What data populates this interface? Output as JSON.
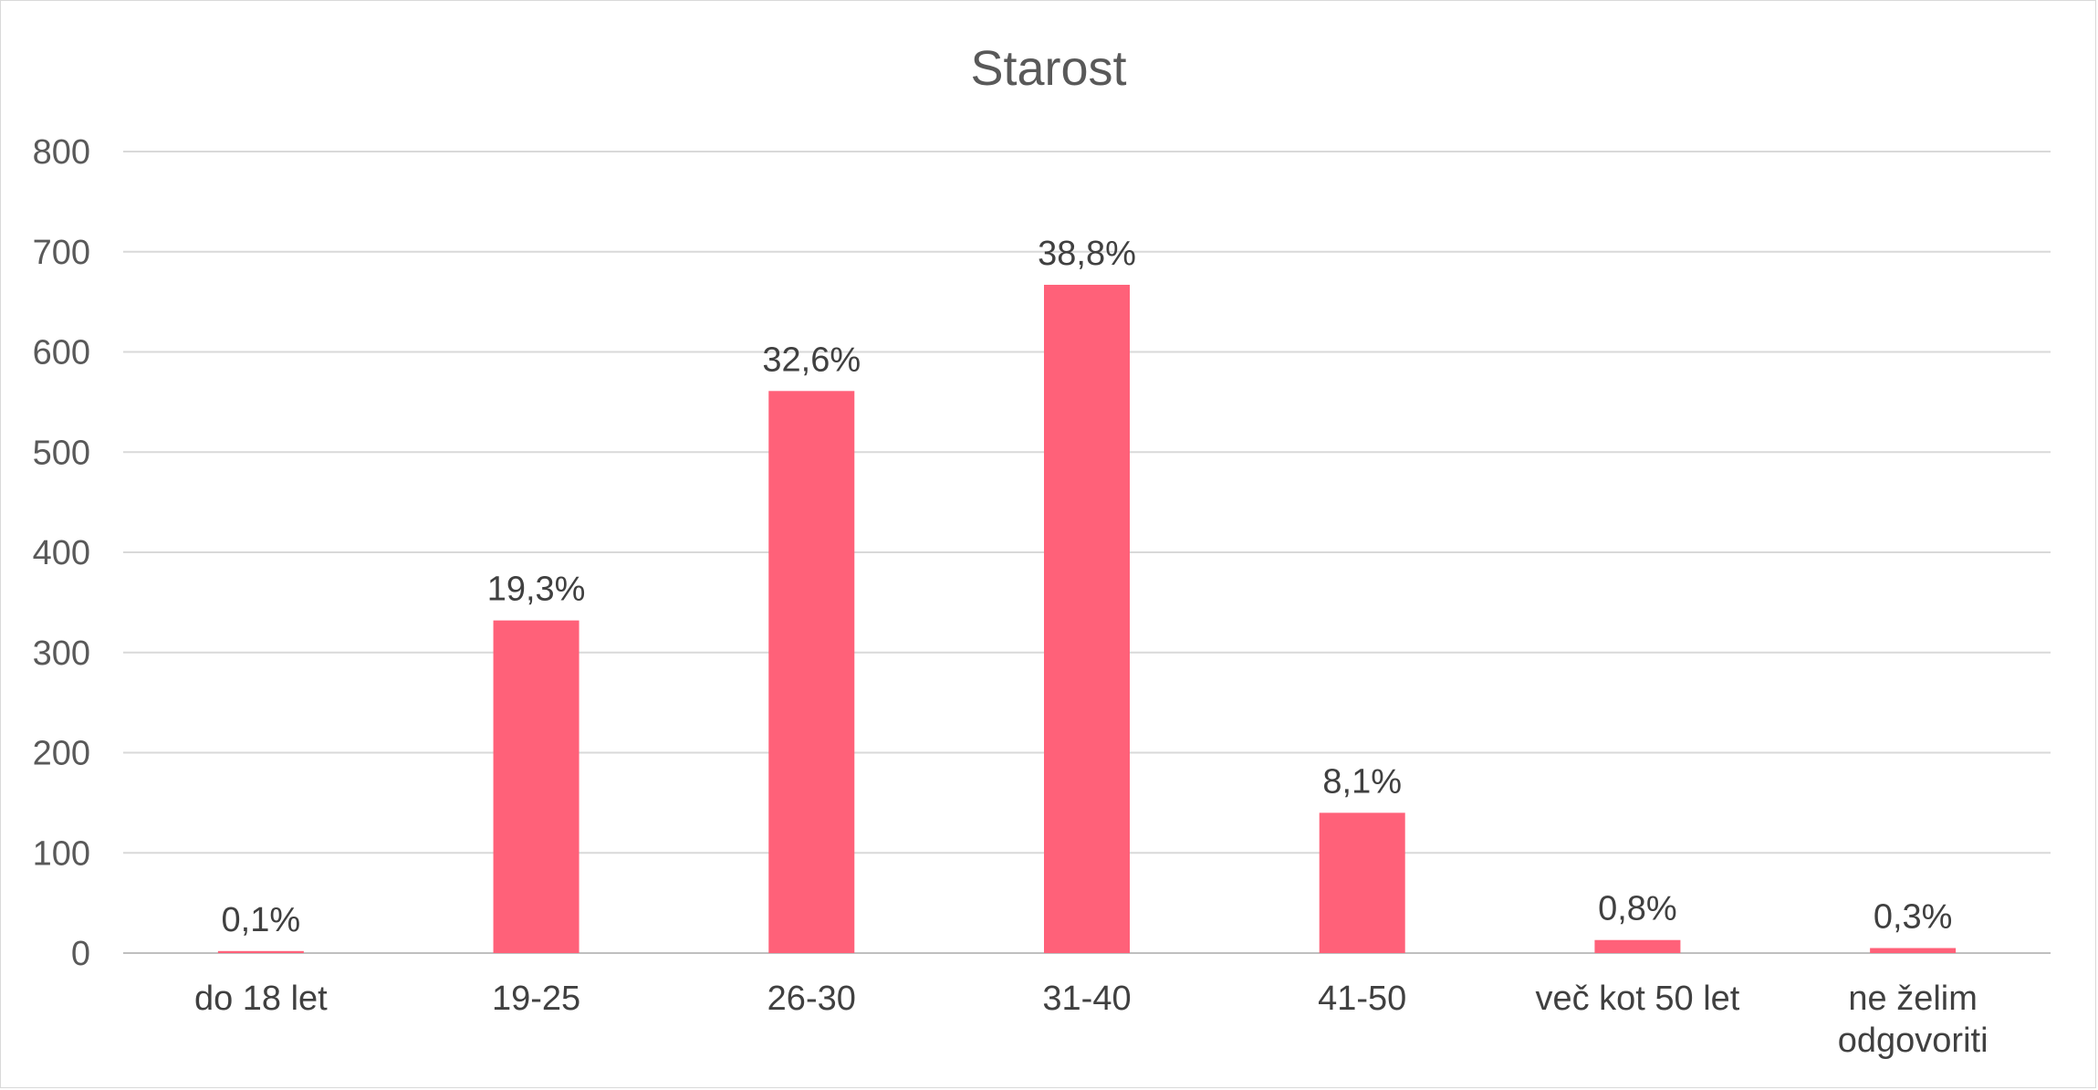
{
  "chart_data": {
    "type": "bar",
    "title": "Starost",
    "xlabel": "",
    "ylabel": "",
    "ylim": [
      0,
      800
    ],
    "yticks": [
      0,
      100,
      200,
      300,
      400,
      500,
      600,
      700,
      800
    ],
    "grid": true,
    "legend": "none",
    "bar_color": "#ff6179",
    "categories": [
      [
        "do 18 let"
      ],
      [
        "19-25"
      ],
      [
        "26-30"
      ],
      [
        "31-40"
      ],
      [
        "41-50"
      ],
      [
        "več kot 50 let"
      ],
      [
        "ne želim",
        "odgovoriti"
      ]
    ],
    "values": [
      2,
      332,
      561,
      667,
      140,
      13,
      5
    ],
    "data_labels": [
      "0,1%",
      "19,3%",
      "32,6%",
      "38,8%",
      "8,1%",
      "0,8%",
      "0,3%"
    ]
  }
}
